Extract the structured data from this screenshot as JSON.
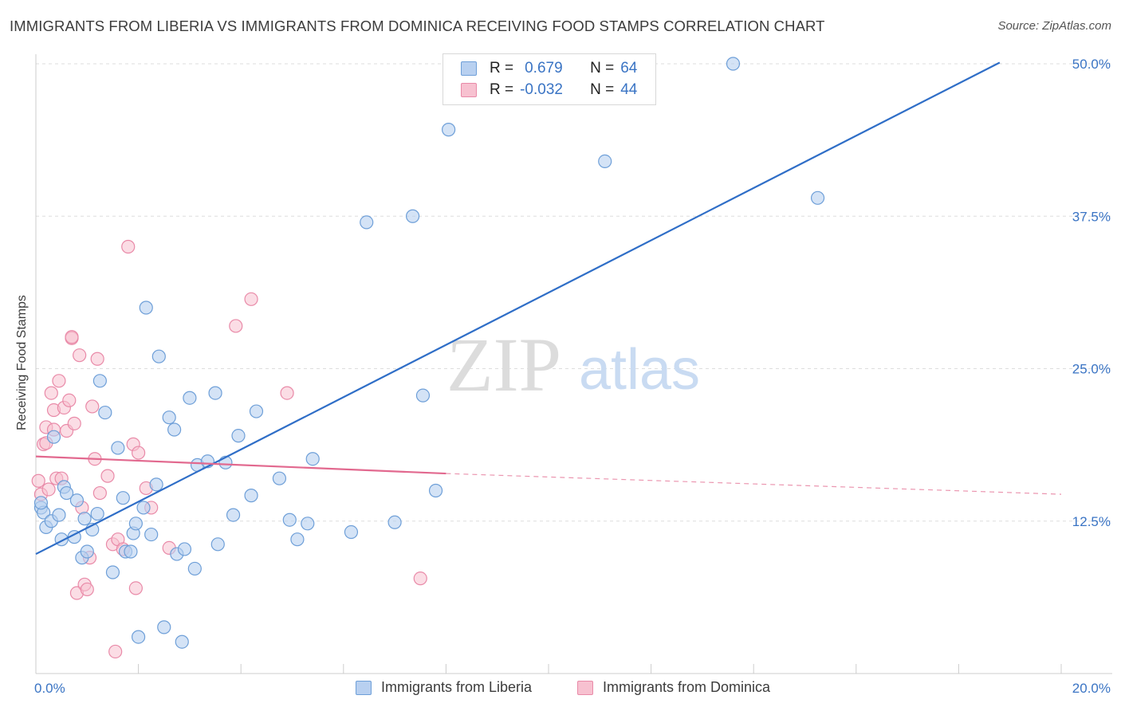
{
  "title": "IMMIGRANTS FROM LIBERIA VS IMMIGRANTS FROM DOMINICA RECEIVING FOOD STAMPS CORRELATION CHART",
  "source": "Source: ZipAtlas.com",
  "watermark": {
    "zip": "ZIP",
    "atlas": "atlas"
  },
  "colors": {
    "liberia_fill": "#b8d0f0",
    "liberia_stroke": "#6e9fd8",
    "liberia_line": "#2f6ec7",
    "dominica_fill": "#f7c1d0",
    "dominica_stroke": "#e98aa8",
    "dominica_line": "#e2698f",
    "axis_text": "#3a74c4",
    "grid": "#dddddd"
  },
  "legend": {
    "rows": [
      {
        "r_label": "R =",
        "r_value": "0.679",
        "n_label": "N =",
        "n_value": "64"
      },
      {
        "r_label": "R =",
        "r_value": "-0.032",
        "n_label": "N =",
        "n_value": "44"
      }
    ]
  },
  "chart_data": {
    "type": "scatter",
    "title": "IMMIGRANTS FROM LIBERIA VS IMMIGRANTS FROM DOMINICA RECEIVING FOOD STAMPS CORRELATION CHART",
    "xlabel": "",
    "ylabel": "Receiving Food Stamps",
    "xlim": [
      0,
      20
    ],
    "ylim": [
      0,
      50
    ],
    "x_tick_labels": [
      "0.0%",
      "20.0%"
    ],
    "y_ticks": [
      12.5,
      25.0,
      37.5,
      50.0
    ],
    "y_tick_labels": [
      "12.5%",
      "25.0%",
      "37.5%",
      "50.0%"
    ],
    "grid": true,
    "series": [
      {
        "name": "Immigrants from Liberia",
        "r": 0.679,
        "n": 64,
        "trend": {
          "x0": 0,
          "y0": 9.8,
          "x1": 18.8,
          "y1": 50.1
        },
        "points": [
          [
            0.1,
            13.6
          ],
          [
            0.15,
            13.2
          ],
          [
            0.2,
            12.0
          ],
          [
            0.3,
            12.5
          ],
          [
            0.35,
            19.4
          ],
          [
            0.45,
            13.0
          ],
          [
            0.55,
            15.3
          ],
          [
            0.6,
            14.8
          ],
          [
            0.75,
            11.2
          ],
          [
            0.8,
            14.2
          ],
          [
            0.9,
            9.5
          ],
          [
            0.95,
            12.7
          ],
          [
            1.0,
            10.0
          ],
          [
            1.1,
            11.8
          ],
          [
            1.2,
            13.1
          ],
          [
            1.25,
            24.0
          ],
          [
            1.35,
            21.4
          ],
          [
            1.5,
            8.3
          ],
          [
            1.6,
            18.5
          ],
          [
            1.7,
            14.4
          ],
          [
            1.75,
            10.0
          ],
          [
            1.85,
            10.0
          ],
          [
            1.9,
            11.5
          ],
          [
            1.95,
            12.3
          ],
          [
            2.1,
            13.6
          ],
          [
            2.15,
            30.0
          ],
          [
            2.25,
            11.4
          ],
          [
            2.35,
            15.5
          ],
          [
            2.4,
            26.0
          ],
          [
            2.6,
            21.0
          ],
          [
            2.7,
            20.0
          ],
          [
            2.75,
            9.8
          ],
          [
            2.9,
            10.2
          ],
          [
            3.0,
            22.6
          ],
          [
            3.1,
            8.6
          ],
          [
            3.15,
            17.1
          ],
          [
            3.35,
            17.4
          ],
          [
            3.5,
            23.0
          ],
          [
            3.55,
            10.6
          ],
          [
            3.7,
            17.3
          ],
          [
            3.85,
            13.0
          ],
          [
            3.95,
            19.5
          ],
          [
            4.2,
            14.6
          ],
          [
            4.3,
            21.5
          ],
          [
            4.75,
            16.0
          ],
          [
            4.95,
            12.6
          ],
          [
            5.1,
            11.0
          ],
          [
            5.3,
            12.3
          ],
          [
            5.4,
            17.6
          ],
          [
            6.15,
            11.6
          ],
          [
            6.45,
            37.0
          ],
          [
            7.0,
            12.4
          ],
          [
            7.35,
            37.5
          ],
          [
            7.55,
            22.8
          ],
          [
            7.8,
            15.0
          ],
          [
            8.05,
            44.6
          ],
          [
            11.1,
            42.0
          ],
          [
            13.6,
            50.0
          ],
          [
            15.25,
            39.0
          ],
          [
            2.0,
            3.0
          ],
          [
            2.5,
            3.8
          ],
          [
            2.85,
            2.6
          ],
          [
            0.1,
            14.0
          ],
          [
            0.5,
            11.0
          ]
        ]
      },
      {
        "name": "Immigrants from Dominica",
        "r": -0.032,
        "n": 44,
        "trend": {
          "x0": 0,
          "y0": 17.8,
          "x1": 8.0,
          "y1": 16.4
        },
        "trend_dashed": {
          "x0": 8.0,
          "y0": 16.4,
          "x1": 20.0,
          "y1": 14.7
        },
        "points": [
          [
            0.05,
            15.8
          ],
          [
            0.1,
            14.7
          ],
          [
            0.15,
            18.8
          ],
          [
            0.2,
            20.2
          ],
          [
            0.25,
            15.1
          ],
          [
            0.3,
            23.0
          ],
          [
            0.35,
            21.6
          ],
          [
            0.4,
            16.0
          ],
          [
            0.45,
            24.0
          ],
          [
            0.5,
            16.0
          ],
          [
            0.55,
            21.8
          ],
          [
            0.6,
            19.9
          ],
          [
            0.65,
            22.4
          ],
          [
            0.7,
            27.5
          ],
          [
            0.75,
            20.5
          ],
          [
            0.8,
            6.6
          ],
          [
            0.85,
            26.1
          ],
          [
            0.9,
            13.6
          ],
          [
            0.95,
            7.3
          ],
          [
            1.0,
            6.9
          ],
          [
            1.05,
            9.5
          ],
          [
            1.1,
            21.9
          ],
          [
            1.15,
            17.6
          ],
          [
            1.2,
            25.8
          ],
          [
            1.25,
            14.8
          ],
          [
            1.4,
            16.2
          ],
          [
            1.5,
            10.6
          ],
          [
            1.55,
            1.8
          ],
          [
            1.6,
            11.0
          ],
          [
            1.7,
            10.2
          ],
          [
            1.8,
            35.0
          ],
          [
            1.9,
            18.8
          ],
          [
            1.95,
            7.0
          ],
          [
            2.0,
            18.1
          ],
          [
            2.15,
            15.2
          ],
          [
            2.25,
            13.6
          ],
          [
            2.6,
            10.3
          ],
          [
            3.9,
            28.5
          ],
          [
            4.2,
            30.7
          ],
          [
            4.9,
            23.0
          ],
          [
            7.5,
            7.8
          ],
          [
            0.2,
            18.9
          ],
          [
            0.7,
            27.6
          ],
          [
            0.35,
            20.0
          ]
        ]
      }
    ]
  },
  "bottom_legend": [
    {
      "label": "Immigrants from Liberia"
    },
    {
      "label": "Immigrants from Dominica"
    }
  ]
}
